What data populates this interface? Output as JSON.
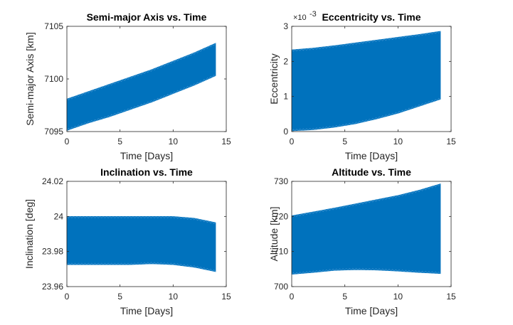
{
  "colors": {
    "band": "#0072BD",
    "band_edge": "#4A9AD4",
    "axis": "#262626",
    "background": "#ffffff"
  },
  "chart_data": [
    {
      "type": "area",
      "title": "Semi-major Axis vs. Time",
      "xlabel": "Time [Days]",
      "ylabel": "Semi-major Axis [km]",
      "xlim": [
        0,
        15
      ],
      "ylim": [
        7095,
        7105
      ],
      "xticks": [
        0,
        5,
        10,
        15
      ],
      "yticks": [
        7095,
        7100,
        7105
      ],
      "x": [
        0,
        2,
        4,
        6,
        8,
        10,
        12,
        14
      ],
      "series": [
        {
          "name": "",
          "upper": [
            7098.1,
            7098.8,
            7099.5,
            7100.2,
            7100.9,
            7101.7,
            7102.5,
            7103.4
          ],
          "lower": [
            7095.1,
            7095.8,
            7096.4,
            7097.1,
            7097.8,
            7098.6,
            7099.4,
            7100.3
          ]
        }
      ],
      "grid": false
    },
    {
      "type": "area",
      "title": "Eccentricity vs. Time",
      "xlabel": "Time [Days]",
      "ylabel": "Eccentricity",
      "exponent": "×10",
      "exponent_power": "-3",
      "xlim": [
        0,
        15
      ],
      "ylim": [
        0,
        3
      ],
      "xticks": [
        0,
        5,
        10,
        15
      ],
      "yticks": [
        0,
        1,
        2,
        3
      ],
      "x": [
        0,
        2,
        4,
        6,
        8,
        10,
        12,
        14
      ],
      "series": [
        {
          "name": "",
          "upper": [
            2.33,
            2.38,
            2.45,
            2.53,
            2.61,
            2.69,
            2.77,
            2.86
          ],
          "lower": [
            0.02,
            0.05,
            0.12,
            0.22,
            0.36,
            0.52,
            0.72,
            0.92
          ]
        }
      ],
      "grid": false
    },
    {
      "type": "area",
      "title": "Inclination vs. Time",
      "xlabel": "Time [Days]",
      "ylabel": "Inclination [deg]",
      "xlim": [
        0,
        15
      ],
      "ylim": [
        23.96,
        24.02
      ],
      "xticks": [
        0,
        5,
        10,
        15
      ],
      "yticks": [
        23.96,
        23.98,
        24,
        24.02
      ],
      "ytick_labels": [
        "23.96",
        "23.98",
        "24",
        "24.02"
      ],
      "x": [
        0,
        2,
        4,
        6,
        8,
        10,
        12,
        14
      ],
      "series": [
        {
          "name": "",
          "upper": [
            24.0,
            24.0,
            24.0,
            24.0,
            24.0,
            24.0,
            23.999,
            23.9965
          ],
          "lower": [
            23.9725,
            23.9725,
            23.9725,
            23.9725,
            23.973,
            23.9725,
            23.971,
            23.9685
          ]
        }
      ],
      "grid": false
    },
    {
      "type": "area",
      "title": "Altitude vs. Time",
      "xlabel": "Time [Days]",
      "ylabel": "Altitude [km]",
      "xlim": [
        0,
        15
      ],
      "ylim": [
        700,
        730
      ],
      "xticks": [
        0,
        5,
        10,
        15
      ],
      "yticks": [
        700,
        710,
        720,
        730
      ],
      "x": [
        0,
        2,
        4,
        6,
        8,
        10,
        12,
        14
      ],
      "series": [
        {
          "name": "",
          "upper": [
            720.2,
            721.3,
            722.4,
            723.6,
            724.8,
            726.0,
            727.5,
            729.3
          ],
          "lower": [
            703.5,
            704.0,
            704.6,
            704.8,
            704.7,
            704.4,
            704.0,
            703.7
          ]
        }
      ],
      "grid": false
    }
  ]
}
